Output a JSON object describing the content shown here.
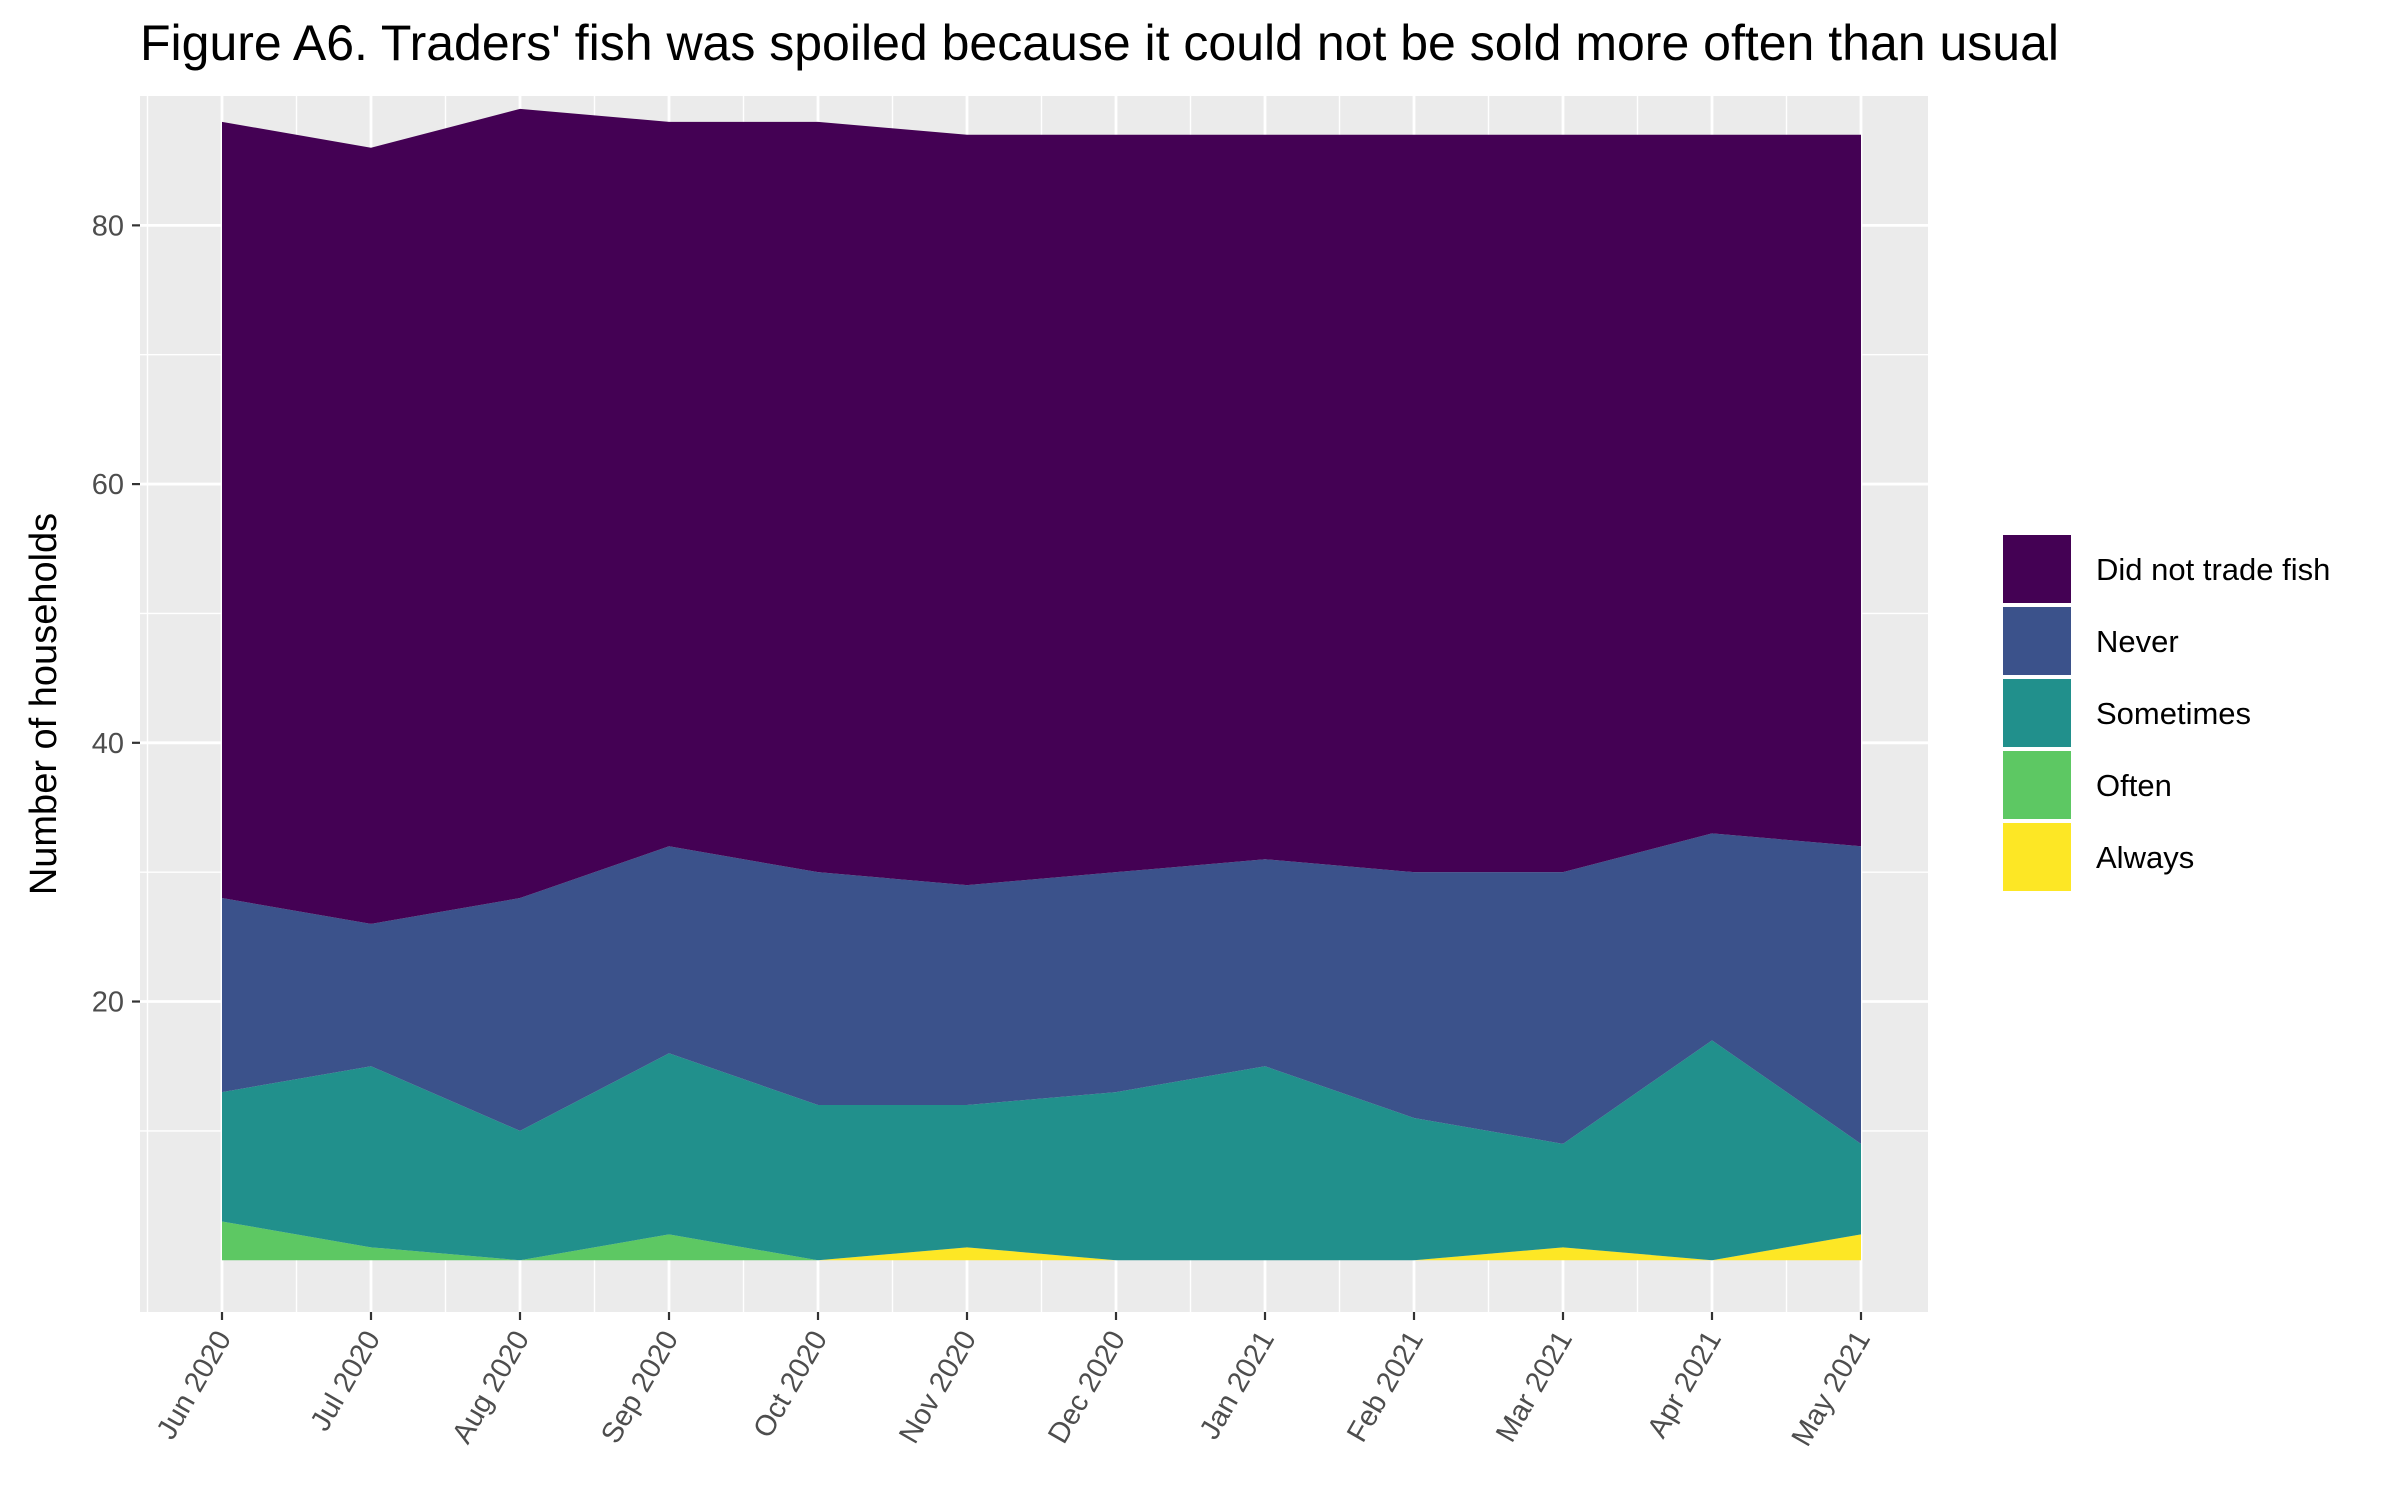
{
  "chart_data": {
    "type": "area",
    "stacked": true,
    "title": "Figure A6. Traders' fish was spoiled because it could not be sold more often than usual",
    "xlabel": "",
    "ylabel": "Number of households",
    "x": [
      "Jun 2020",
      "Jul 2020",
      "Aug 2020",
      "Sep 2020",
      "Oct 2020",
      "Nov 2020",
      "Dec 2020",
      "Jan 2021",
      "Feb 2021",
      "Mar 2021",
      "Apr 2021",
      "May 2021"
    ],
    "ylim": [
      -4,
      90
    ],
    "yticks": [
      20,
      40,
      60,
      80
    ],
    "grid": true,
    "legend_position": "right",
    "series": [
      {
        "name": "Always",
        "color": "#FDE725",
        "values": [
          0,
          0,
          0,
          0,
          0,
          1,
          0,
          0,
          0,
          1,
          0,
          2
        ]
      },
      {
        "name": "Often",
        "color": "#5DC863",
        "values": [
          3,
          1,
          0,
          2,
          0,
          0,
          0,
          0,
          0,
          0,
          0,
          0
        ]
      },
      {
        "name": "Sometimes",
        "color": "#21908C",
        "values": [
          10,
          14,
          10,
          14,
          12,
          11,
          13,
          15,
          11,
          8,
          17,
          7
        ]
      },
      {
        "name": "Never",
        "color": "#3B528B",
        "values": [
          15,
          11,
          18,
          16,
          18,
          17,
          17,
          16,
          19,
          21,
          16,
          23
        ]
      },
      {
        "name": "Did not trade fish",
        "color": "#440154",
        "values": [
          60,
          60,
          61,
          56,
          58,
          58,
          57,
          56,
          57,
          57,
          54,
          55
        ]
      }
    ],
    "legend_order": [
      "Did not trade fish",
      "Never",
      "Sometimes",
      "Often",
      "Always"
    ]
  },
  "colors": {
    "panel_background": "#EBEBEB",
    "grid_major": "#FFFFFF",
    "tick_text": "#4D4D4D",
    "Did not trade fish": "#440154",
    "Never": "#3B528B",
    "Sometimes": "#21908C",
    "Often": "#5DC863",
    "Always": "#FDE725"
  }
}
